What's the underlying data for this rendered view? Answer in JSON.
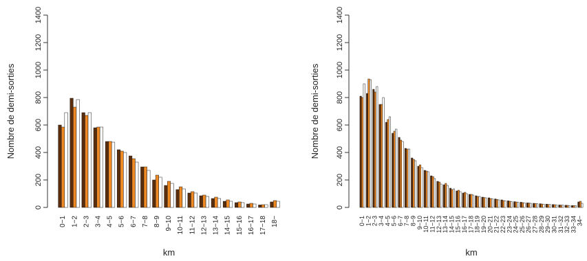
{
  "figure": {
    "colors": {
      "dark": "#5a2d0c",
      "orange": "#f08a24",
      "light": "#ffffff",
      "edge": "#1a1a1a"
    }
  },
  "chart_data": [
    {
      "type": "bar",
      "xlabel": "km",
      "ylabel": "Nombre de demi-sorties",
      "ylim": [
        0,
        1400
      ],
      "yticks": [
        0,
        200,
        400,
        600,
        800,
        1000,
        1200,
        1400
      ],
      "categories": [
        "0−1",
        "1−2",
        "2−3",
        "3−4",
        "4−5",
        "5−6",
        "6−7",
        "7−8",
        "8−9",
        "9−10",
        "10−11",
        "11−12",
        "12−13",
        "13−14",
        "14−15",
        "15−16",
        "16−17",
        "17−18",
        "18−"
      ],
      "series": [
        {
          "values": [
            600,
            795,
            690,
            580,
            480,
            420,
            375,
            295,
            200,
            160,
            130,
            105,
            85,
            65,
            45,
            35,
            25,
            18,
            40
          ]
        },
        {
          "values": [
            585,
            730,
            670,
            585,
            480,
            410,
            355,
            295,
            235,
            190,
            150,
            115,
            90,
            75,
            55,
            40,
            30,
            20,
            50
          ]
        },
        {
          "values": [
            690,
            785,
            690,
            585,
            475,
            400,
            330,
            270,
            220,
            175,
            135,
            105,
            80,
            65,
            45,
            35,
            25,
            20,
            45
          ]
        }
      ]
    },
    {
      "type": "bar",
      "xlabel": "km",
      "ylabel": "Nombre de demi-sorties",
      "ylim": [
        0,
        1400
      ],
      "yticks": [
        0,
        200,
        400,
        600,
        800,
        1000,
        1200,
        1400
      ],
      "categories": [
        "0−1",
        "1−2",
        "2−3",
        "3−4",
        "4−5",
        "5−6",
        "6−7",
        "7−8",
        "8−9",
        "9−10",
        "10−11",
        "11−12",
        "12−13",
        "13−14",
        "14−15",
        "15−16",
        "16−17",
        "17−18",
        "18−19",
        "19−20",
        "20−21",
        "21−22",
        "22−23",
        "23−24",
        "24−25",
        "25−26",
        "26−27",
        "27−28",
        "28−29",
        "29−30",
        "30−31",
        "31−32",
        "32−33",
        "33−34",
        "34−"
      ],
      "series": [
        {
          "values": [
            810,
            830,
            860,
            750,
            620,
            540,
            510,
            430,
            360,
            300,
            270,
            230,
            190,
            165,
            140,
            120,
            105,
            95,
            85,
            75,
            70,
            62,
            55,
            48,
            42,
            38,
            33,
            30,
            27,
            24,
            21,
            18,
            16,
            14,
            40
          ]
        },
        {
          "values": [
            800,
            935,
            840,
            750,
            640,
            555,
            490,
            425,
            350,
            310,
            265,
            225,
            185,
            175,
            130,
            125,
            110,
            95,
            80,
            72,
            65,
            58,
            50,
            45,
            40,
            35,
            32,
            28,
            25,
            22,
            20,
            17,
            15,
            13,
            45
          ]
        },
        {
          "values": [
            900,
            930,
            880,
            800,
            660,
            570,
            480,
            425,
            340,
            290,
            260,
            210,
            170,
            160,
            135,
            115,
            100,
            90,
            80,
            70,
            62,
            55,
            48,
            42,
            37,
            33,
            30,
            27,
            24,
            21,
            19,
            16,
            14,
            12,
            30
          ]
        }
      ]
    }
  ]
}
